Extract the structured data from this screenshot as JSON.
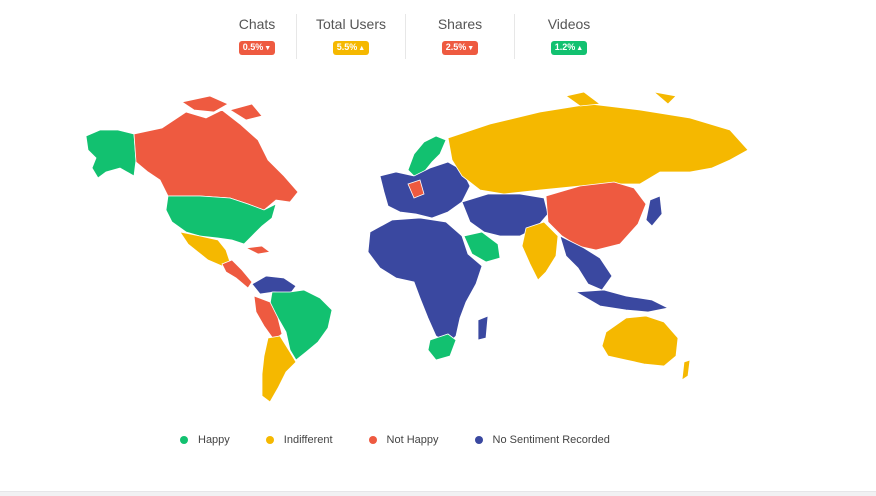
{
  "stats": [
    {
      "label": "Chats",
      "value": "0.5%",
      "direction": "down",
      "color": "#ee5a40"
    },
    {
      "label": "Total Users",
      "value": "5.5%",
      "direction": "up",
      "color": "#f5b800"
    },
    {
      "label": "Shares",
      "value": "2.5%",
      "direction": "down",
      "color": "#ee5a40"
    },
    {
      "label": "Videos",
      "value": "1.2%",
      "direction": "up",
      "color": "#12c170"
    }
  ],
  "legend": [
    {
      "label": "Happy",
      "color": "#12c170"
    },
    {
      "label": "Indifferent",
      "color": "#f5b800"
    },
    {
      "label": "Not Happy",
      "color": "#ee5a40"
    },
    {
      "label": "No Sentiment Recorded",
      "color": "#3a48a0"
    }
  ],
  "regions": [
    {
      "name": "alaska",
      "sentiment": "Happy"
    },
    {
      "name": "canada",
      "sentiment": "Not Happy"
    },
    {
      "name": "usa",
      "sentiment": "Happy"
    },
    {
      "name": "mexico",
      "sentiment": "Indifferent"
    },
    {
      "name": "central-america",
      "sentiment": "Not Happy"
    },
    {
      "name": "brazil",
      "sentiment": "Happy"
    },
    {
      "name": "peru",
      "sentiment": "Not Happy"
    },
    {
      "name": "argentina",
      "sentiment": "Indifferent"
    },
    {
      "name": "scandinavia",
      "sentiment": "Happy"
    },
    {
      "name": "europe",
      "sentiment": "No Sentiment Recorded"
    },
    {
      "name": "russia",
      "sentiment": "Indifferent"
    },
    {
      "name": "africa",
      "sentiment": "No Sentiment Recorded"
    },
    {
      "name": "saudi-arabia",
      "sentiment": "Happy"
    },
    {
      "name": "south-africa",
      "sentiment": "Happy"
    },
    {
      "name": "india",
      "sentiment": "Indifferent"
    },
    {
      "name": "china",
      "sentiment": "Not Happy"
    },
    {
      "name": "southeast-asia",
      "sentiment": "No Sentiment Recorded"
    },
    {
      "name": "australia",
      "sentiment": "Indifferent"
    }
  ],
  "arrow_down": "▼",
  "arrow_up": "▲"
}
